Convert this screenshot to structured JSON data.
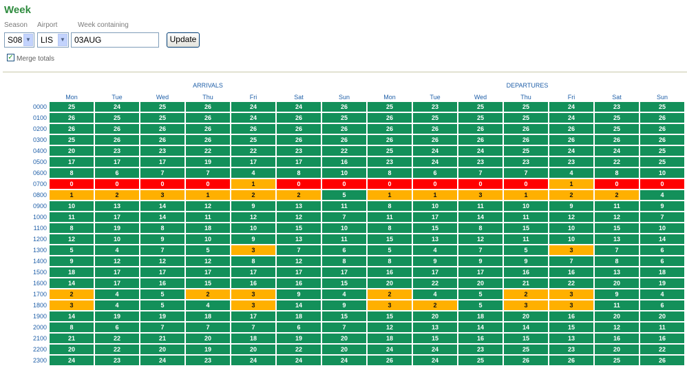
{
  "page_title": "Week",
  "filters": {
    "season_label": "Season",
    "airport_label": "Airport",
    "week_label": "Week containing",
    "season_value": "S08",
    "airport_value": "LIS",
    "week_value": "03AUG",
    "update_label": "Update",
    "merge_label": "Merge totals",
    "merge_checked": true
  },
  "group_headers": {
    "arrivals": "ARRIVALS",
    "departures": "DEPARTURES"
  },
  "days": [
    "Mon",
    "Tue",
    "Wed",
    "Thu",
    "Fri",
    "Sat",
    "Sun",
    "Mon",
    "Tue",
    "Wed",
    "Thu",
    "Fri",
    "Sat",
    "Sun"
  ],
  "colors": {
    "green": "#13905a",
    "red": "#ff0000",
    "orange": "#ffb000"
  },
  "rows": [
    {
      "time": "0000",
      "values": [
        25,
        24,
        25,
        26,
        24,
        24,
        26,
        25,
        23,
        25,
        25,
        24,
        23,
        25
      ]
    },
    {
      "time": "0100",
      "values": [
        26,
        25,
        25,
        26,
        24,
        26,
        25,
        26,
        25,
        25,
        25,
        24,
        25,
        26
      ]
    },
    {
      "time": "0200",
      "values": [
        26,
        26,
        26,
        26,
        26,
        26,
        26,
        26,
        26,
        26,
        26,
        26,
        25,
        26
      ]
    },
    {
      "time": "0300",
      "values": [
        25,
        26,
        26,
        26,
        25,
        26,
        26,
        26,
        26,
        26,
        26,
        26,
        26,
        26
      ]
    },
    {
      "time": "0400",
      "values": [
        20,
        23,
        23,
        22,
        22,
        23,
        22,
        25,
        24,
        24,
        25,
        24,
        24,
        25
      ]
    },
    {
      "time": "0500",
      "values": [
        17,
        17,
        17,
        19,
        17,
        17,
        16,
        23,
        24,
        23,
        23,
        23,
        22,
        25
      ]
    },
    {
      "time": "0600",
      "values": [
        8,
        6,
        7,
        7,
        4,
        8,
        10,
        8,
        6,
        7,
        7,
        4,
        8,
        10
      ]
    },
    {
      "time": "0700",
      "values": [
        0,
        0,
        0,
        0,
        1,
        0,
        0,
        0,
        0,
        0,
        0,
        1,
        0,
        0
      ]
    },
    {
      "time": "0800",
      "values": [
        1,
        2,
        3,
        1,
        2,
        2,
        5,
        1,
        1,
        3,
        1,
        2,
        2,
        4
      ]
    },
    {
      "time": "0900",
      "values": [
        10,
        13,
        14,
        12,
        9,
        13,
        11,
        8,
        10,
        11,
        10,
        9,
        11,
        9
      ]
    },
    {
      "time": "1000",
      "values": [
        11,
        17,
        14,
        11,
        12,
        12,
        7,
        11,
        17,
        14,
        11,
        12,
        12,
        7
      ]
    },
    {
      "time": "1100",
      "values": [
        8,
        19,
        8,
        18,
        10,
        15,
        10,
        8,
        15,
        8,
        15,
        10,
        15,
        10
      ]
    },
    {
      "time": "1200",
      "values": [
        12,
        10,
        9,
        10,
        9,
        13,
        11,
        15,
        13,
        12,
        11,
        10,
        13,
        14
      ]
    },
    {
      "time": "1300",
      "values": [
        5,
        4,
        7,
        5,
        3,
        7,
        6,
        5,
        4,
        7,
        5,
        3,
        7,
        6
      ]
    },
    {
      "time": "1400",
      "values": [
        9,
        12,
        12,
        12,
        8,
        12,
        8,
        8,
        9,
        9,
        9,
        7,
        8,
        6
      ]
    },
    {
      "time": "1500",
      "values": [
        18,
        17,
        17,
        17,
        17,
        17,
        17,
        16,
        17,
        17,
        16,
        16,
        13,
        18
      ]
    },
    {
      "time": "1600",
      "values": [
        14,
        17,
        16,
        15,
        16,
        16,
        15,
        20,
        22,
        20,
        21,
        22,
        20,
        19
      ]
    },
    {
      "time": "1700",
      "values": [
        2,
        4,
        5,
        2,
        3,
        9,
        4,
        2,
        4,
        5,
        2,
        3,
        9,
        4
      ]
    },
    {
      "time": "1800",
      "values": [
        3,
        4,
        5,
        4,
        3,
        14,
        9,
        3,
        2,
        5,
        3,
        3,
        11,
        6
      ]
    },
    {
      "time": "1900",
      "values": [
        14,
        19,
        19,
        18,
        17,
        18,
        15,
        15,
        20,
        18,
        20,
        16,
        20,
        20
      ]
    },
    {
      "time": "2000",
      "values": [
        8,
        6,
        7,
        7,
        7,
        6,
        7,
        12,
        13,
        14,
        14,
        15,
        12,
        11
      ]
    },
    {
      "time": "2100",
      "values": [
        21,
        22,
        21,
        20,
        18,
        19,
        20,
        18,
        15,
        16,
        15,
        13,
        16,
        16
      ]
    },
    {
      "time": "2200",
      "values": [
        20,
        22,
        20,
        19,
        20,
        22,
        20,
        24,
        24,
        23,
        25,
        23,
        20,
        22
      ]
    },
    {
      "time": "2300",
      "values": [
        24,
        23,
        24,
        23,
        24,
        24,
        24,
        26,
        24,
        25,
        26,
        26,
        25,
        26
      ]
    }
  ]
}
